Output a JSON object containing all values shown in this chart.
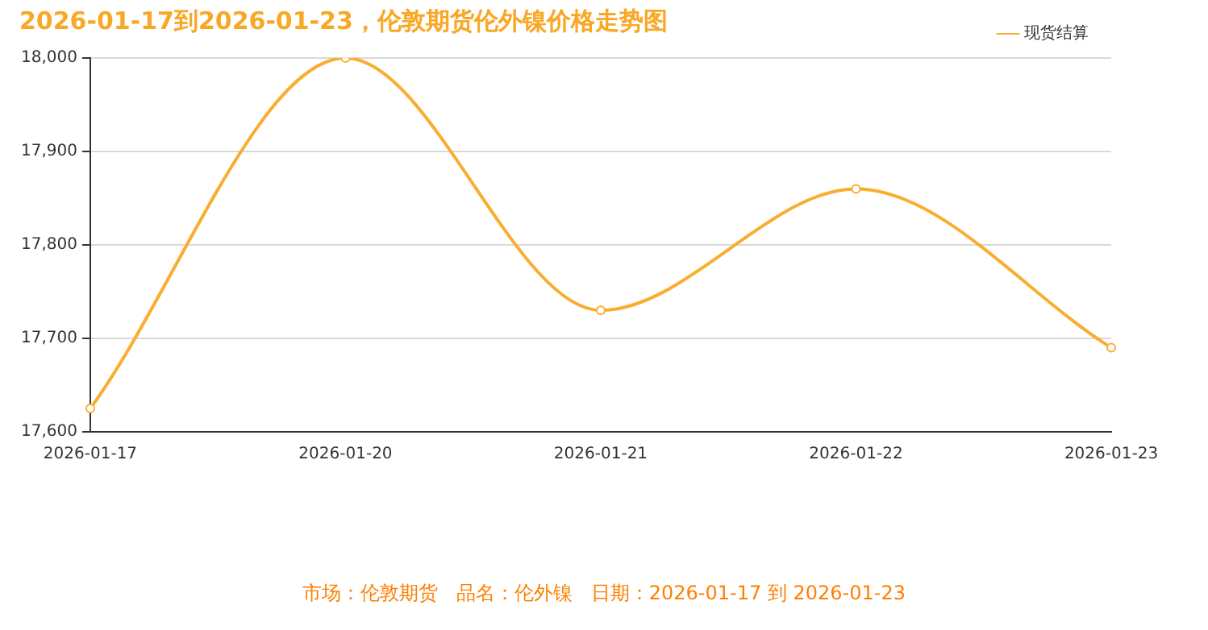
{
  "chart_data": {
    "type": "line",
    "title": "2026-01-17到2026-01-23，伦敦期货伦外镍价格走势图",
    "categories": [
      "2026-01-17",
      "2026-01-20",
      "2026-01-21",
      "2026-01-22",
      "2026-01-23"
    ],
    "series": [
      {
        "name": "现货结算",
        "color": "#f9ae2f",
        "values": [
          17625,
          18000,
          17730,
          17860,
          17690
        ]
      }
    ],
    "ylim": [
      17600,
      18000
    ],
    "yticks": [
      {
        "value": 17600,
        "label": "17,600"
      },
      {
        "value": 17700,
        "label": "17,700"
      },
      {
        "value": 17800,
        "label": "17,800"
      },
      {
        "value": 17900,
        "label": "17,900"
      },
      {
        "value": 18000,
        "label": "18,000"
      }
    ],
    "grid": "y",
    "legend": "top right",
    "marker": "circle",
    "annotations": [
      "市场：伦敦期货   品名：伦外镍   日期：2026-01-17 到 2026-01-23"
    ]
  }
}
